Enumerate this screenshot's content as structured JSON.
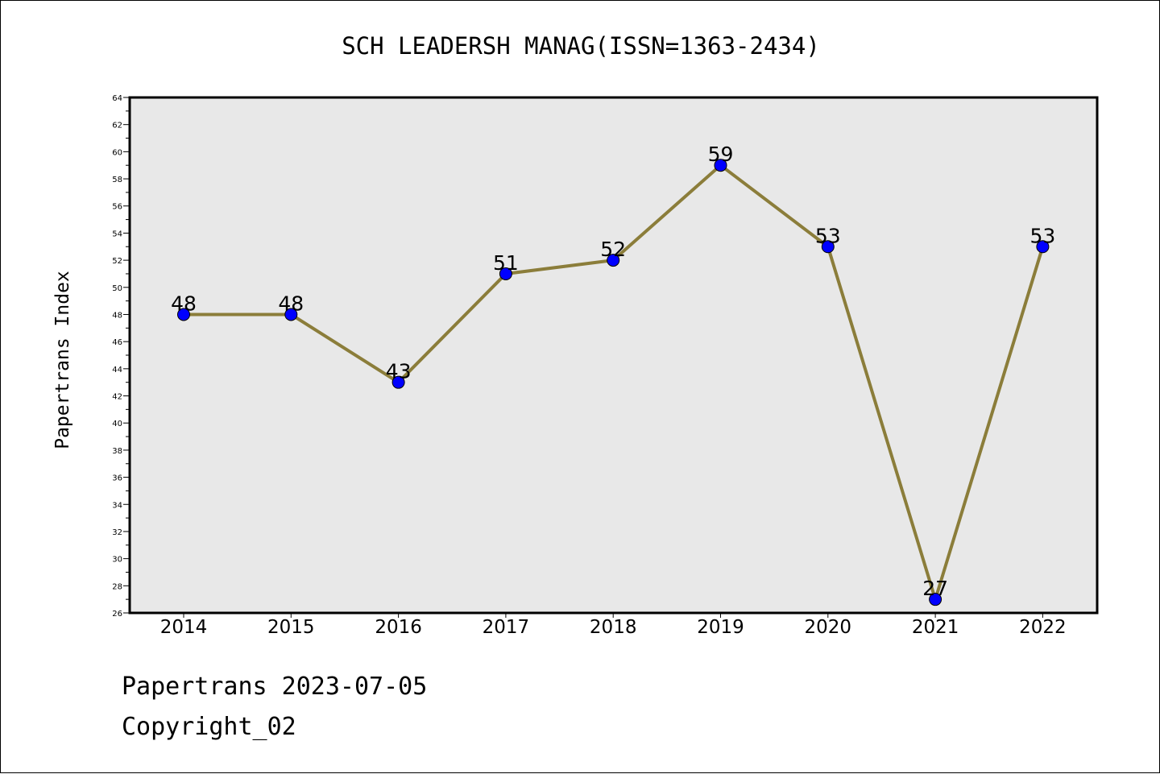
{
  "chart_data": {
    "type": "line",
    "title": "SCH LEADERSH MANAG(ISSN=1363-2434)",
    "xlabel": "",
    "ylabel": "Papertrans Index",
    "categories": [
      "2014",
      "2015",
      "2016",
      "2017",
      "2018",
      "2019",
      "2020",
      "2021",
      "2022"
    ],
    "values": [
      48,
      48,
      43,
      51,
      52,
      59,
      53,
      27,
      53
    ],
    "ylim": [
      26,
      64
    ],
    "yticks": [
      26,
      28,
      30,
      32,
      34,
      36,
      38,
      40,
      42,
      44,
      46,
      48,
      50,
      52,
      54,
      56,
      58,
      60,
      62,
      64
    ],
    "grid": false,
    "data_labels": true,
    "colors": {
      "line": "#8b7d3a",
      "marker": "#0000ff",
      "plot_background": "#e8e8e8"
    }
  },
  "footer": {
    "line1": "Papertrans 2023-07-05",
    "line2": "Copyright_02"
  }
}
